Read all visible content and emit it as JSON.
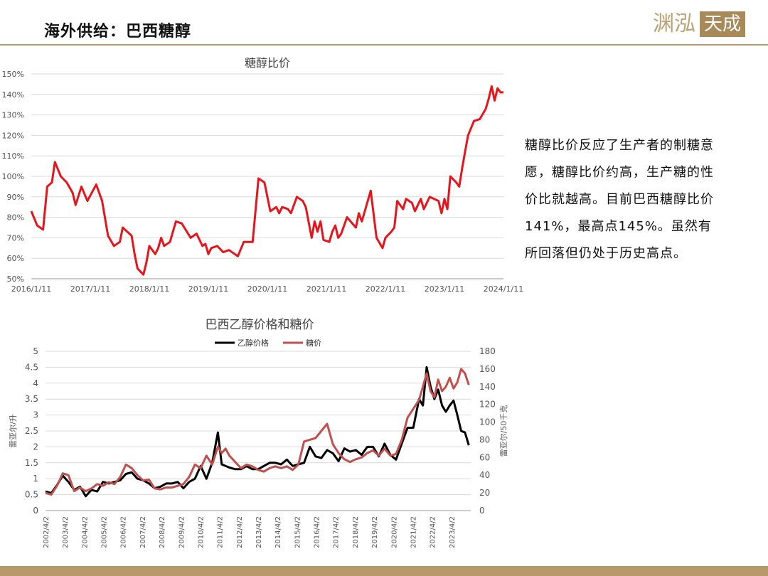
{
  "header": {
    "title": "海外供给：巴西糖醇",
    "logo_left": "渊泓",
    "logo_right": "天成"
  },
  "note": {
    "text": "糖醇比价反应了生产者的制糖意愿，糖醇比价约高，生产糖的性价比就越高。目前巴西糖醇比价141%，最高点145%。虽然有所回落但仍处于历史高点。"
  },
  "colors": {
    "brand": "#b89a6a",
    "ratio_line": "#e8141c",
    "ethanol_line": "#000000",
    "sugar_line": "#c0504d",
    "grid": "#d9d9d9"
  },
  "chart_data": [
    {
      "type": "line",
      "title": "糖醇比价",
      "xlabel": "",
      "ylabel": "",
      "x_ticks": [
        "2016/1/11",
        "2017/1/11",
        "2018/1/11",
        "2019/1/11",
        "2020/1/11",
        "2021/1/11",
        "2022/1/11",
        "2023/1/11",
        "2024/1/11"
      ],
      "y_ticks": [
        "50%",
        "60%",
        "70%",
        "80%",
        "90%",
        "100%",
        "110%",
        "120%",
        "130%",
        "140%",
        "150%"
      ],
      "ylim": [
        50,
        150
      ],
      "xlim": [
        2016.0,
        2024.0
      ],
      "grid": true,
      "series": [
        {
          "x": [
            2016.0,
            2016.1,
            2016.2,
            2016.27,
            2016.35,
            2016.4,
            2016.5,
            2016.6,
            2016.7,
            2016.75,
            2016.85,
            2016.95,
            2017.1,
            2017.2,
            2017.3,
            2017.4,
            2017.5,
            2017.55,
            2017.7,
            2017.75,
            2017.8,
            2017.9,
            2017.95,
            2018.0,
            2018.1,
            2018.15,
            2018.2,
            2018.25,
            2018.35,
            2018.45,
            2018.55,
            2018.7,
            2018.8,
            2018.9,
            2018.95,
            2019.0,
            2019.05,
            2019.15,
            2019.25,
            2019.35,
            2019.5,
            2019.6,
            2019.75,
            2019.85,
            2019.95,
            2020.05,
            2020.1,
            2020.15,
            2020.2,
            2020.25,
            2020.35,
            2020.4,
            2020.5,
            2020.6,
            2020.65,
            2020.75,
            2020.8,
            2020.85,
            2020.9,
            2020.95,
            2021.05,
            2021.1,
            2021.15,
            2021.2,
            2021.25,
            2021.35,
            2021.5,
            2021.55,
            2021.6,
            2021.65,
            2021.75,
            2021.85,
            2021.95,
            2022.0,
            2022.1,
            2022.15,
            2022.2,
            2022.3,
            2022.35,
            2022.45,
            2022.5,
            2022.6,
            2022.65,
            2022.75,
            2022.9,
            2022.95,
            2023.0,
            2023.05,
            2023.1,
            2023.2,
            2023.25,
            2023.3,
            2023.35,
            2023.4,
            2023.5,
            2023.6,
            2023.7,
            2023.75,
            2023.8,
            2023.85,
            2023.9,
            2023.95,
            2024.0
          ],
          "values": [
            83,
            76,
            74,
            95,
            97,
            107,
            100,
            97,
            92,
            86,
            95,
            88,
            96,
            88,
            71,
            66,
            68,
            75,
            71,
            62,
            55,
            52,
            58,
            66,
            62,
            65,
            70,
            66,
            68,
            78,
            77,
            70,
            72,
            66,
            67,
            62,
            65,
            66,
            63,
            64,
            61,
            68,
            68,
            99,
            97,
            83,
            84,
            85,
            82,
            85,
            84,
            82,
            90,
            88,
            85,
            70,
            78,
            73,
            78,
            69,
            68,
            73,
            76,
            70,
            72,
            80,
            75,
            82,
            78,
            83,
            93,
            70,
            65,
            70,
            73,
            75,
            88,
            84,
            89,
            87,
            83,
            89,
            84,
            90,
            88,
            82,
            89,
            84,
            100,
            97,
            95,
            104,
            112,
            120,
            127,
            128,
            133,
            138,
            144,
            137,
            143,
            141,
            141
          ]
        }
      ]
    },
    {
      "type": "line",
      "title": "巴西乙醇价格和糖价",
      "xlabel": "",
      "ylabel": "雷亚尔/升",
      "y2label": "雷亚尔/50千克",
      "x_ticks": [
        "2002/4/2",
        "2003/4/2",
        "2004/4/2",
        "2005/4/2",
        "2006/4/2",
        "2007/4/2",
        "2008/4/2",
        "2009/4/2",
        "2010/4/2",
        "2011/4/2",
        "2012/4/2",
        "2013/4/2",
        "2014/4/2",
        "2015/4/2",
        "2016/4/2",
        "2017/4/2",
        "2018/4/2",
        "2019/4/2",
        "2020/4/2",
        "2021/4/2",
        "2022/4/2",
        "2023/4/2"
      ],
      "y_ticks": [
        "0",
        "0.5",
        "1",
        "1.5",
        "2",
        "2.5",
        "3",
        "3.5",
        "4",
        "4.5",
        "5"
      ],
      "y2_ticks": [
        "0",
        "20",
        "40",
        "60",
        "80",
        "100",
        "120",
        "140",
        "160",
        "180"
      ],
      "ylim": [
        0,
        5
      ],
      "y2lim": [
        0,
        180
      ],
      "xlim": [
        2002.0,
        2024.2
      ],
      "legend": "top",
      "grid": true,
      "series": [
        {
          "name": "乙醇价格",
          "axis": "left",
          "x": [
            2002.0,
            2002.3,
            2002.6,
            2002.9,
            2003.2,
            2003.5,
            2003.8,
            2004.1,
            2004.4,
            2004.7,
            2005.0,
            2005.3,
            2005.6,
            2005.9,
            2006.2,
            2006.5,
            2006.8,
            2007.1,
            2007.4,
            2007.7,
            2008.0,
            2008.3,
            2008.6,
            2008.9,
            2009.2,
            2009.5,
            2009.8,
            2010.1,
            2010.4,
            2010.7,
            2011.0,
            2011.2,
            2011.4,
            2011.6,
            2011.9,
            2012.2,
            2012.5,
            2012.8,
            2013.1,
            2013.4,
            2013.7,
            2014.0,
            2014.3,
            2014.6,
            2014.9,
            2015.2,
            2015.5,
            2015.8,
            2016.1,
            2016.4,
            2016.7,
            2017.0,
            2017.3,
            2017.6,
            2017.9,
            2018.2,
            2018.5,
            2018.8,
            2019.1,
            2019.4,
            2019.7,
            2020.0,
            2020.3,
            2020.6,
            2020.9,
            2021.2,
            2021.5,
            2021.7,
            2021.9,
            2022.1,
            2022.3,
            2022.5,
            2022.7,
            2022.9,
            2023.1,
            2023.3,
            2023.5,
            2023.7,
            2023.9,
            2024.1
          ],
          "values": [
            0.6,
            0.55,
            0.8,
            1.1,
            0.9,
            0.65,
            0.75,
            0.45,
            0.65,
            0.6,
            0.9,
            0.85,
            0.9,
            0.95,
            1.15,
            1.2,
            1.0,
            0.95,
            0.85,
            0.7,
            0.75,
            0.85,
            0.85,
            0.9,
            0.7,
            0.9,
            1.0,
            1.4,
            1.0,
            1.5,
            2.45,
            1.45,
            1.4,
            1.35,
            1.3,
            1.3,
            1.4,
            1.3,
            1.3,
            1.4,
            1.5,
            1.5,
            1.45,
            1.6,
            1.4,
            1.45,
            1.5,
            2.0,
            1.7,
            1.65,
            1.9,
            1.8,
            1.55,
            1.95,
            1.85,
            1.9,
            1.75,
            2.0,
            2.0,
            1.7,
            2.1,
            1.75,
            1.6,
            2.1,
            2.6,
            2.6,
            3.5,
            3.3,
            4.5,
            3.9,
            3.5,
            3.8,
            3.3,
            3.1,
            3.3,
            3.45,
            3.0,
            2.5,
            2.45,
            2.05
          ]
        },
        {
          "name": "糖价",
          "axis": "right",
          "x": [
            2002.0,
            2002.3,
            2002.6,
            2002.9,
            2003.2,
            2003.5,
            2003.8,
            2004.1,
            2004.4,
            2004.7,
            2005.0,
            2005.3,
            2005.6,
            2005.9,
            2006.2,
            2006.5,
            2006.8,
            2007.1,
            2007.4,
            2007.7,
            2008.0,
            2008.3,
            2008.6,
            2008.9,
            2009.2,
            2009.5,
            2009.8,
            2010.1,
            2010.4,
            2010.7,
            2011.0,
            2011.2,
            2011.4,
            2011.6,
            2011.9,
            2012.2,
            2012.5,
            2012.8,
            2013.1,
            2013.4,
            2013.7,
            2014.0,
            2014.3,
            2014.6,
            2014.9,
            2015.2,
            2015.5,
            2015.8,
            2016.1,
            2016.4,
            2016.7,
            2017.0,
            2017.3,
            2017.6,
            2017.9,
            2018.2,
            2018.5,
            2018.8,
            2019.1,
            2019.4,
            2019.7,
            2020.0,
            2020.3,
            2020.6,
            2020.9,
            2021.2,
            2021.5,
            2021.7,
            2021.9,
            2022.1,
            2022.3,
            2022.5,
            2022.7,
            2022.9,
            2023.1,
            2023.3,
            2023.5,
            2023.7,
            2023.9,
            2024.1
          ],
          "values": [
            20,
            18,
            28,
            42,
            40,
            22,
            26,
            22,
            25,
            30,
            28,
            32,
            30,
            38,
            52,
            48,
            40,
            34,
            35,
            25,
            24,
            26,
            26,
            28,
            30,
            38,
            52,
            48,
            62,
            52,
            72,
            65,
            70,
            62,
            55,
            48,
            52,
            50,
            46,
            44,
            48,
            50,
            48,
            50,
            46,
            52,
            78,
            80,
            82,
            90,
            98,
            75,
            65,
            58,
            55,
            58,
            60,
            65,
            68,
            62,
            70,
            62,
            64,
            80,
            105,
            115,
            125,
            140,
            155,
            135,
            128,
            148,
            135,
            140,
            150,
            138,
            145,
            160,
            155,
            142
          ]
        }
      ]
    }
  ]
}
